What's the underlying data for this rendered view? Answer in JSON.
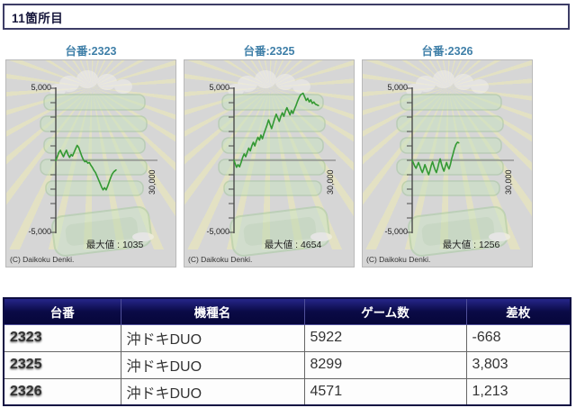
{
  "page": {
    "title": "11箇所目"
  },
  "colors": {
    "line_green": "#339933",
    "title_blue": "#3f7fa8",
    "table_navy": "#0a0a46",
    "negative_red": "#e81010",
    "panel_gray": "#d6d6d6"
  },
  "chart_data": [
    {
      "type": "line",
      "title": "台番:2323",
      "machine_number": "2323",
      "series_name": "差枚",
      "x_unit": "ゲーム数",
      "ylim": [
        -5000,
        5000
      ],
      "y_tick_interval": 1000,
      "y_top_label": "5,000",
      "y_bottom_label": "-5,000",
      "x_end_label": "30,000",
      "max_value": 1035,
      "max_value_text": "最大値 : 1035",
      "final_value": -668,
      "copyright": "(C) Daikoku Denki.",
      "points": [
        [
          0,
          0
        ],
        [
          150,
          250
        ],
        [
          300,
          550
        ],
        [
          450,
          700
        ],
        [
          600,
          450
        ],
        [
          750,
          250
        ],
        [
          900,
          500
        ],
        [
          1050,
          700
        ],
        [
          1200,
          400
        ],
        [
          1350,
          200
        ],
        [
          1500,
          400
        ],
        [
          1650,
          300
        ],
        [
          1800,
          550
        ],
        [
          1950,
          800
        ],
        [
          2100,
          1035
        ],
        [
          2250,
          900
        ],
        [
          2400,
          600
        ],
        [
          2550,
          300
        ],
        [
          2700,
          50
        ],
        [
          2850,
          -100
        ],
        [
          3000,
          -50
        ],
        [
          3150,
          -200
        ],
        [
          3300,
          -150
        ],
        [
          3450,
          -350
        ],
        [
          3600,
          -500
        ],
        [
          3750,
          -700
        ],
        [
          3900,
          -850
        ],
        [
          4050,
          -1100
        ],
        [
          4200,
          -1350
        ],
        [
          4350,
          -1600
        ],
        [
          4500,
          -1850
        ],
        [
          4650,
          -2050
        ],
        [
          4800,
          -1900
        ],
        [
          4950,
          -2050
        ],
        [
          5100,
          -1800
        ],
        [
          5250,
          -1500
        ],
        [
          5400,
          -1200
        ],
        [
          5550,
          -950
        ],
        [
          5700,
          -800
        ],
        [
          5922,
          -668
        ]
      ]
    },
    {
      "type": "line",
      "title": "台番:2325",
      "machine_number": "2325",
      "series_name": "差枚",
      "x_unit": "ゲーム数",
      "ylim": [
        -5000,
        5000
      ],
      "y_tick_interval": 1000,
      "y_top_label": "5,000",
      "y_bottom_label": "-5,000",
      "x_end_label": "30,000",
      "max_value": 4654,
      "max_value_text": "最大値 : 4654",
      "final_value": 3803,
      "copyright": "(C) Daikoku Denki.",
      "points": [
        [
          0,
          0
        ],
        [
          120,
          -250
        ],
        [
          250,
          -480
        ],
        [
          400,
          -300
        ],
        [
          550,
          -450
        ],
        [
          700,
          -150
        ],
        [
          850,
          200
        ],
        [
          1000,
          450
        ],
        [
          1150,
          250
        ],
        [
          1300,
          550
        ],
        [
          1450,
          850
        ],
        [
          1600,
          650
        ],
        [
          1750,
          1000
        ],
        [
          1900,
          1250
        ],
        [
          2050,
          1000
        ],
        [
          2200,
          1350
        ],
        [
          2350,
          1600
        ],
        [
          2500,
          1400
        ],
        [
          2650,
          1750
        ],
        [
          2800,
          1500
        ],
        [
          2950,
          1850
        ],
        [
          3100,
          2150
        ],
        [
          3250,
          2450
        ],
        [
          3400,
          2800
        ],
        [
          3550,
          2500
        ],
        [
          3700,
          2200
        ],
        [
          3850,
          2550
        ],
        [
          4000,
          2900
        ],
        [
          4150,
          3200
        ],
        [
          4300,
          2950
        ],
        [
          4450,
          2700
        ],
        [
          4600,
          3050
        ],
        [
          4750,
          3300
        ],
        [
          4900,
          3050
        ],
        [
          5050,
          3400
        ],
        [
          5200,
          3650
        ],
        [
          5350,
          3400
        ],
        [
          5500,
          3150
        ],
        [
          5650,
          3450
        ],
        [
          5800,
          3250
        ],
        [
          5950,
          3550
        ],
        [
          6100,
          3800
        ],
        [
          6250,
          4100
        ],
        [
          6400,
          4350
        ],
        [
          6550,
          4550
        ],
        [
          6800,
          4654
        ],
        [
          6950,
          4400
        ],
        [
          7100,
          4150
        ],
        [
          7250,
          4300
        ],
        [
          7400,
          4050
        ],
        [
          7550,
          4200
        ],
        [
          7700,
          3950
        ],
        [
          7850,
          4050
        ],
        [
          8000,
          3900
        ],
        [
          8150,
          3850
        ],
        [
          8299,
          3803
        ]
      ]
    },
    {
      "type": "line",
      "title": "台番:2326",
      "machine_number": "2326",
      "series_name": "差枚",
      "x_unit": "ゲーム数",
      "ylim": [
        -5000,
        5000
      ],
      "y_tick_interval": 1000,
      "y_top_label": "5,000",
      "y_bottom_label": "-5,000",
      "x_end_label": "30,000",
      "max_value": 1256,
      "max_value_text": "最大値 : 1256",
      "final_value": 1213,
      "copyright": "(C) Daikoku Denki.",
      "points": [
        [
          0,
          0
        ],
        [
          120,
          -200
        ],
        [
          250,
          -400
        ],
        [
          380,
          -550
        ],
        [
          500,
          -350
        ],
        [
          620,
          -150
        ],
        [
          750,
          -400
        ],
        [
          880,
          -650
        ],
        [
          1000,
          -850
        ],
        [
          1120,
          -600
        ],
        [
          1250,
          -300
        ],
        [
          1380,
          -550
        ],
        [
          1500,
          -800
        ],
        [
          1620,
          -1000
        ],
        [
          1750,
          -700
        ],
        [
          1880,
          -350
        ],
        [
          2000,
          -100
        ],
        [
          2120,
          -400
        ],
        [
          2250,
          -650
        ],
        [
          2380,
          -850
        ],
        [
          2500,
          -550
        ],
        [
          2620,
          -200
        ],
        [
          2750,
          100
        ],
        [
          2880,
          -250
        ],
        [
          3000,
          -550
        ],
        [
          3120,
          -750
        ],
        [
          3250,
          -450
        ],
        [
          3380,
          -150
        ],
        [
          3500,
          -400
        ],
        [
          3620,
          -600
        ],
        [
          3750,
          -300
        ],
        [
          3880,
          100
        ],
        [
          4000,
          400
        ],
        [
          4150,
          800
        ],
        [
          4300,
          1100
        ],
        [
          4450,
          1256
        ],
        [
          4571,
          1213
        ]
      ]
    }
  ],
  "table": {
    "headers": [
      "台番",
      "機種名",
      "ゲーム数",
      "差枚"
    ],
    "rows": [
      {
        "daiban": "2323",
        "model": "沖ドキDUO",
        "games": "5922",
        "diff": "-668"
      },
      {
        "daiban": "2325",
        "model": "沖ドキDUO",
        "games": "8299",
        "diff": "3,803"
      },
      {
        "daiban": "2326",
        "model": "沖ドキDUO",
        "games": "4571",
        "diff": "1,213"
      }
    ]
  }
}
